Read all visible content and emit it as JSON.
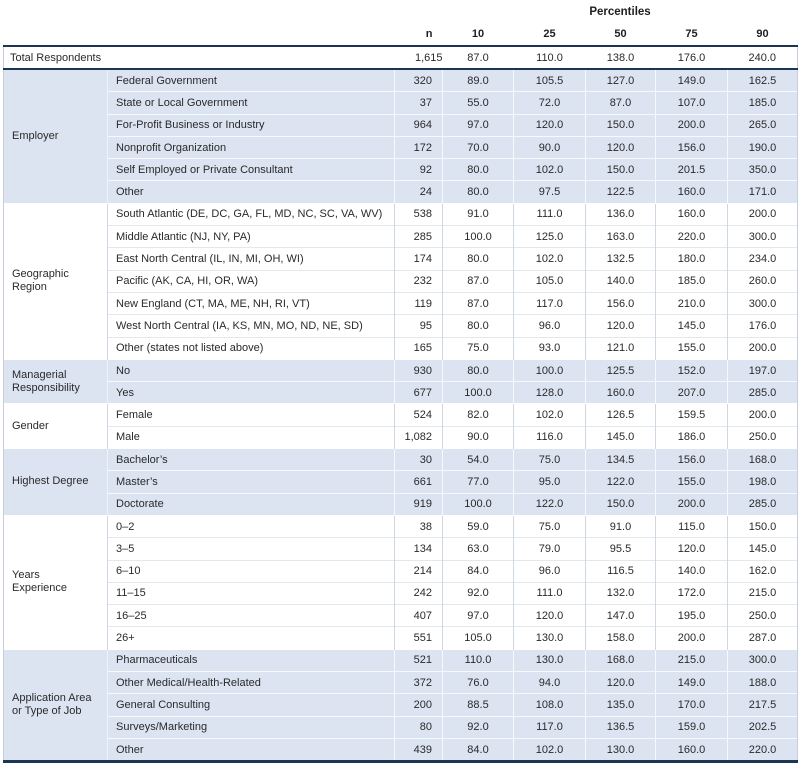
{
  "colors": {
    "band_blue": "#dce3f1",
    "rule_navy": "#1b3553",
    "grid_light": "#cfd7e4"
  },
  "chart_data": {
    "type": "table",
    "title": "Percentiles",
    "columns": [
      "n",
      "10",
      "25",
      "50",
      "75",
      "90"
    ],
    "total_row": {
      "label": "Total Respondents",
      "n": "1,615",
      "values": [
        "87.0",
        "110.0",
        "138.0",
        "176.0",
        "240.0"
      ]
    },
    "groups": [
      {
        "category": "Employer",
        "rows": [
          {
            "label": "Federal Government",
            "n": "320",
            "values": [
              "89.0",
              "105.5",
              "127.0",
              "149.0",
              "162.5"
            ]
          },
          {
            "label": "State or Local Government",
            "n": "37",
            "values": [
              "55.0",
              "72.0",
              "87.0",
              "107.0",
              "185.0"
            ]
          },
          {
            "label": "For-Profit Business or Industry",
            "n": "964",
            "values": [
              "97.0",
              "120.0",
              "150.0",
              "200.0",
              "265.0"
            ]
          },
          {
            "label": "Nonprofit Organization",
            "n": "172",
            "values": [
              "70.0",
              "90.0",
              "120.0",
              "156.0",
              "190.0"
            ]
          },
          {
            "label": "Self Employed or Private Consultant",
            "n": "92",
            "values": [
              "80.0",
              "102.0",
              "150.0",
              "201.5",
              "350.0"
            ]
          },
          {
            "label": "Other",
            "n": "24",
            "values": [
              "80.0",
              "97.5",
              "122.5",
              "160.0",
              "171.0"
            ]
          }
        ]
      },
      {
        "category": "Geographic Region",
        "rows": [
          {
            "label": "South Atlantic (DE, DC, GA, FL, MD, NC, SC, VA, WV)",
            "n": "538",
            "values": [
              "91.0",
              "111.0",
              "136.0",
              "160.0",
              "200.0"
            ]
          },
          {
            "label": "Middle Atlantic (NJ, NY, PA)",
            "n": "285",
            "values": [
              "100.0",
              "125.0",
              "163.0",
              "220.0",
              "300.0"
            ]
          },
          {
            "label": "East North Central (IL, IN, MI, OH, WI)",
            "n": "174",
            "values": [
              "80.0",
              "102.0",
              "132.5",
              "180.0",
              "234.0"
            ]
          },
          {
            "label": "Pacific (AK, CA, HI, OR, WA)",
            "n": "232",
            "values": [
              "87.0",
              "105.0",
              "140.0",
              "185.0",
              "260.0"
            ]
          },
          {
            "label": "New England (CT, MA, ME, NH, RI, VT)",
            "n": "119",
            "values": [
              "87.0",
              "117.0",
              "156.0",
              "210.0",
              "300.0"
            ]
          },
          {
            "label": "West North Central (IA, KS, MN, MO, ND, NE, SD)",
            "n": "95",
            "values": [
              "80.0",
              "96.0",
              "120.0",
              "145.0",
              "176.0"
            ]
          },
          {
            "label": "Other (states not listed above)",
            "n": "165",
            "values": [
              "75.0",
              "93.0",
              "121.0",
              "155.0",
              "200.0"
            ]
          }
        ]
      },
      {
        "category": "Managerial Responsibility",
        "rows": [
          {
            "label": "No",
            "n": "930",
            "values": [
              "80.0",
              "100.0",
              "125.5",
              "152.0",
              "197.0"
            ]
          },
          {
            "label": "Yes",
            "n": "677",
            "values": [
              "100.0",
              "128.0",
              "160.0",
              "207.0",
              "285.0"
            ]
          }
        ]
      },
      {
        "category": "Gender",
        "rows": [
          {
            "label": "Female",
            "n": "524",
            "values": [
              "82.0",
              "102.0",
              "126.5",
              "159.5",
              "200.0"
            ]
          },
          {
            "label": "Male",
            "n": "1,082",
            "values": [
              "90.0",
              "116.0",
              "145.0",
              "186.0",
              "250.0"
            ]
          }
        ]
      },
      {
        "category": "Highest Degree",
        "rows": [
          {
            "label": "Bachelor’s",
            "n": "30",
            "values": [
              "54.0",
              "75.0",
              "134.5",
              "156.0",
              "168.0"
            ]
          },
          {
            "label": "Master’s",
            "n": "661",
            "values": [
              "77.0",
              "95.0",
              "122.0",
              "155.0",
              "198.0"
            ]
          },
          {
            "label": "Doctorate",
            "n": "919",
            "values": [
              "100.0",
              "122.0",
              "150.0",
              "200.0",
              "285.0"
            ]
          }
        ]
      },
      {
        "category": "Years Experience",
        "rows": [
          {
            "label": "0–2",
            "n": "38",
            "values": [
              "59.0",
              "75.0",
              "91.0",
              "115.0",
              "150.0"
            ]
          },
          {
            "label": "3–5",
            "n": "134",
            "values": [
              "63.0",
              "79.0",
              "95.5",
              "120.0",
              "145.0"
            ]
          },
          {
            "label": "6–10",
            "n": "214",
            "values": [
              "84.0",
              "96.0",
              "116.5",
              "140.0",
              "162.0"
            ]
          },
          {
            "label": "11–15",
            "n": "242",
            "values": [
              "92.0",
              "111.0",
              "132.0",
              "172.0",
              "215.0"
            ]
          },
          {
            "label": "16–25",
            "n": "407",
            "values": [
              "97.0",
              "120.0",
              "147.0",
              "195.0",
              "250.0"
            ]
          },
          {
            "label": "26+",
            "n": "551",
            "values": [
              "105.0",
              "130.0",
              "158.0",
              "200.0",
              "287.0"
            ]
          }
        ]
      },
      {
        "category": "Application Area or Type of Job",
        "rows": [
          {
            "label": "Pharmaceuticals",
            "n": "521",
            "values": [
              "110.0",
              "130.0",
              "168.0",
              "215.0",
              "300.0"
            ]
          },
          {
            "label": "Other Medical/Health-Related",
            "n": "372",
            "values": [
              "76.0",
              "94.0",
              "120.0",
              "149.0",
              "188.0"
            ]
          },
          {
            "label": "General Consulting",
            "n": "200",
            "values": [
              "88.5",
              "108.0",
              "135.0",
              "170.0",
              "217.5"
            ]
          },
          {
            "label": "Surveys/Marketing",
            "n": "80",
            "values": [
              "92.0",
              "117.0",
              "136.5",
              "159.0",
              "202.5"
            ]
          },
          {
            "label": "Other",
            "n": "439",
            "values": [
              "84.0",
              "102.0",
              "130.0",
              "160.0",
              "220.0"
            ]
          }
        ]
      }
    ]
  }
}
